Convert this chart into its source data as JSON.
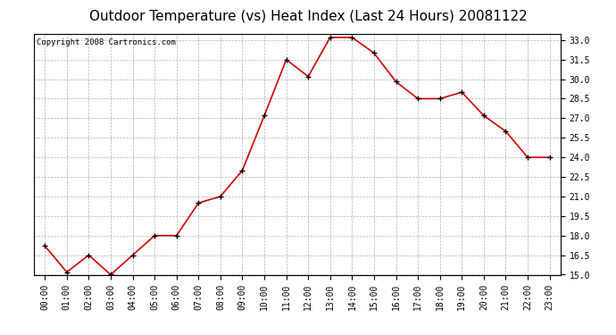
{
  "title": "Outdoor Temperature (vs) Heat Index (Last 24 Hours) 20081122",
  "copyright_text": "Copyright 2008 Cartronics.com",
  "x_labels": [
    "00:00",
    "01:00",
    "02:00",
    "03:00",
    "04:00",
    "05:00",
    "06:00",
    "07:00",
    "08:00",
    "09:00",
    "10:00",
    "11:00",
    "12:00",
    "13:00",
    "14:00",
    "15:00",
    "16:00",
    "17:00",
    "18:00",
    "19:00",
    "20:00",
    "21:00",
    "22:00",
    "23:00"
  ],
  "y_values": [
    17.2,
    15.2,
    16.5,
    15.0,
    16.5,
    18.0,
    18.0,
    20.5,
    21.0,
    23.0,
    27.2,
    31.5,
    30.2,
    33.2,
    33.2,
    32.0,
    29.8,
    28.5,
    28.5,
    29.0,
    27.2,
    26.0,
    24.0,
    24.0
  ],
  "line_color": "#cc0000",
  "marker_color": "#000000",
  "background_color": "#ffffff",
  "plot_bg_color": "#ffffff",
  "grid_color": "#aaaaaa",
  "ylim_min": 15.0,
  "ylim_max": 33.5,
  "yticks": [
    15.0,
    16.5,
    18.0,
    19.5,
    21.0,
    22.5,
    24.0,
    25.5,
    27.0,
    28.5,
    30.0,
    31.5,
    33.0
  ],
  "title_fontsize": 11,
  "tick_fontsize": 7,
  "copyright_fontsize": 6.5
}
